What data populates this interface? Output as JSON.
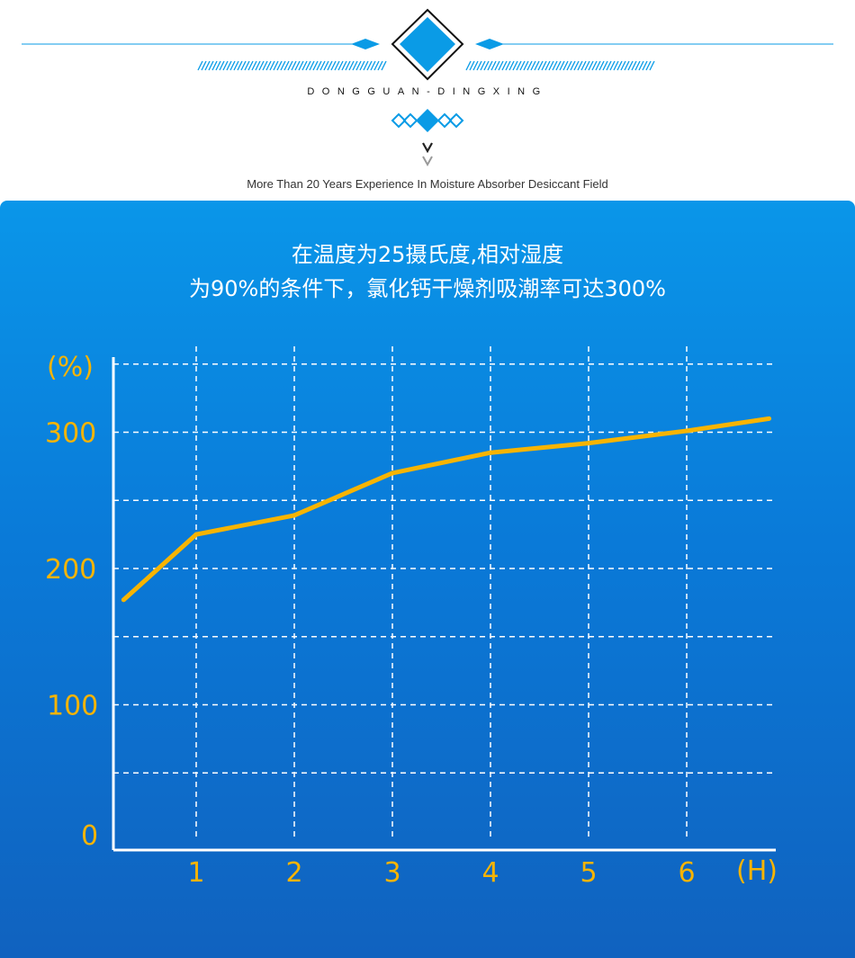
{
  "header": {
    "brand": "DONGGUAN-DINGXING",
    "tagline": "More Than 20 Years Experience In Moisture Absorber Desiccant Field",
    "accent_color": "#0a9be6",
    "chevron_icons": [
      "chevron-down-icon",
      "chevron-down-icon"
    ]
  },
  "chart_data": {
    "type": "line",
    "title_lines": [
      "在温度为25摄氏度,相对湿度",
      "为90%的条件下，氯化钙干燥剂吸潮率可达300%"
    ],
    "xlabel": "(H)",
    "ylabel": "(%)",
    "x_ticks": [
      "1",
      "2",
      "3",
      "4",
      "5",
      "6"
    ],
    "y_ticks": [
      {
        "value": 0,
        "label": "0"
      },
      {
        "value": 100,
        "label": "100"
      },
      {
        "value": 200,
        "label": "200"
      },
      {
        "value": 300,
        "label": "300"
      }
    ],
    "xlim": [
      0,
      6.9
    ],
    "ylim": [
      0,
      350
    ],
    "grid": "dashed",
    "series": [
      {
        "color": "#f8b400",
        "x": [
          0.26,
          1,
          2,
          3,
          4,
          5,
          6,
          6.84
        ],
        "y": [
          177,
          225,
          239,
          270,
          285,
          292,
          301,
          310
        ]
      }
    ]
  }
}
